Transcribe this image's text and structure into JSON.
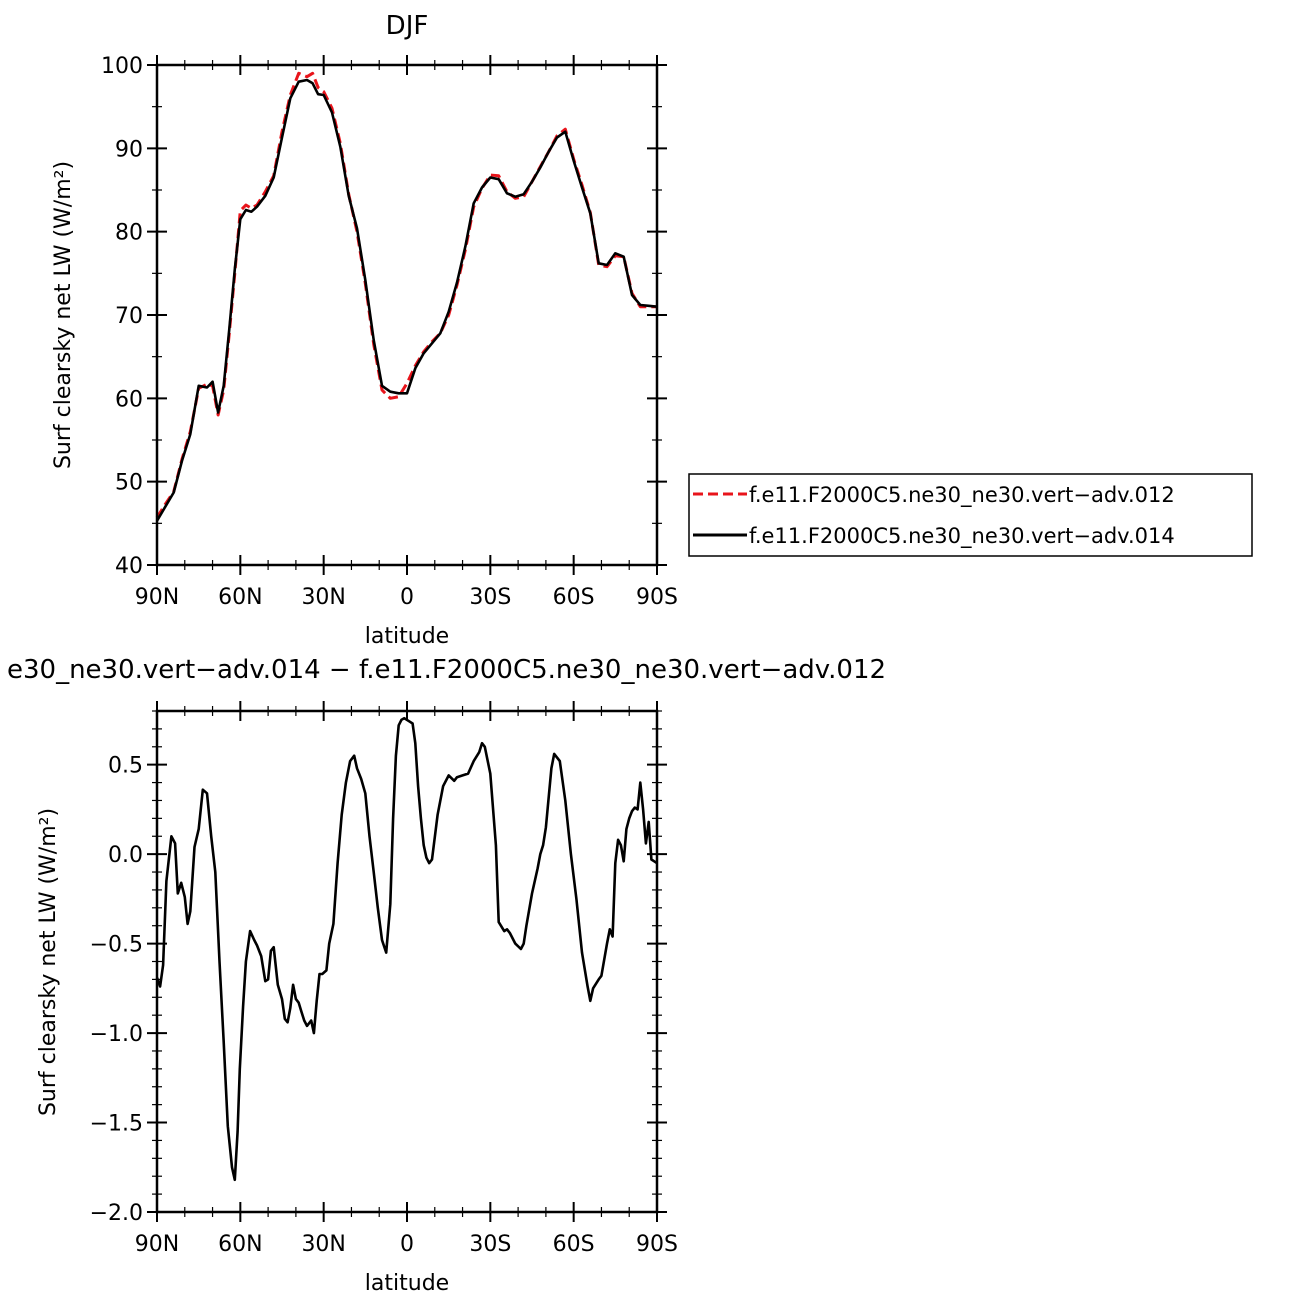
{
  "chart_data": [
    {
      "type": "line",
      "title": "DJF",
      "xlabel": "latitude",
      "ylabel": "Surf clearsky net LW (W/m²)",
      "xlim": [
        90,
        -90
      ],
      "ylim": [
        40,
        100
      ],
      "xticks": [
        {
          "value": 90,
          "label": "90N"
        },
        {
          "value": 60,
          "label": "60N"
        },
        {
          "value": 30,
          "label": "30N"
        },
        {
          "value": 0,
          "label": "0"
        },
        {
          "value": -30,
          "label": "30S"
        },
        {
          "value": -60,
          "label": "60S"
        },
        {
          "value": -90,
          "label": "90S"
        }
      ],
      "yticks": [
        {
          "value": 40,
          "label": "40"
        },
        {
          "value": 50,
          "label": "50"
        },
        {
          "value": 60,
          "label": "60"
        },
        {
          "value": 70,
          "label": "70"
        },
        {
          "value": 80,
          "label": "80"
        },
        {
          "value": 90,
          "label": "90"
        },
        {
          "value": 100,
          "label": "100"
        }
      ],
      "legend": {
        "placement": "right"
      },
      "series": [
        {
          "name": "f.e11.F2000C5.ne30_ne30.vert−adv.012",
          "color": "#e8141b",
          "dash": "dashed",
          "x": [
            90,
            87,
            84,
            81,
            78,
            75,
            72,
            70,
            68,
            66,
            64,
            62,
            60,
            58,
            56,
            54,
            51,
            48,
            45,
            42,
            39,
            36,
            34,
            32,
            30,
            27,
            24,
            21,
            18,
            15,
            12,
            9,
            6,
            3,
            0,
            -3,
            -6,
            -9,
            -12,
            -15,
            -18,
            -21,
            -24,
            -27,
            -30,
            -33,
            -36,
            -39,
            -42,
            -45,
            -48,
            -51,
            -54,
            -57,
            -60,
            -63,
            -66,
            -69,
            -72,
            -75,
            -78,
            -81,
            -84,
            -87,
            -90
          ],
          "values": [
            45.7,
            47.3,
            48.8,
            52.7,
            56.0,
            61.2,
            61.7,
            61.5,
            58.0,
            61.0,
            67.7,
            75.0,
            82.5,
            83.2,
            82.8,
            83.2,
            84.8,
            86.7,
            92.0,
            96.4,
            99.0,
            98.6,
            99.0,
            97.3,
            96.8,
            94.8,
            90.6,
            84.5,
            80.0,
            73.8,
            66.5,
            61.0,
            60.0,
            60.2,
            61.8,
            63.9,
            65.6,
            66.8,
            67.8,
            70.0,
            73.6,
            77.8,
            83.0,
            85.2,
            86.8,
            86.7,
            84.8,
            84.0,
            84.2,
            86.0,
            87.8,
            89.6,
            91.5,
            92.3,
            88.7,
            85.6,
            82.3,
            76.0,
            75.8,
            77.1,
            77.0,
            72.6,
            71.0,
            71.0,
            71.0
          ]
        },
        {
          "name": "f.e11.F2000C5.ne30_ne30.vert−adv.014",
          "color": "#000000",
          "dash": "solid",
          "x": [
            90,
            87,
            84,
            81,
            78,
            75,
            72,
            70,
            68,
            66,
            64,
            62,
            60,
            58,
            56,
            54,
            51,
            48,
            45,
            42,
            39,
            36,
            34,
            32,
            30,
            27,
            24,
            21,
            18,
            15,
            12,
            9,
            6,
            3,
            0,
            -3,
            -6,
            -9,
            -12,
            -15,
            -18,
            -21,
            -24,
            -27,
            -30,
            -33,
            -36,
            -39,
            -42,
            -45,
            -48,
            -51,
            -54,
            -57,
            -60,
            -63,
            -66,
            -69,
            -72,
            -75,
            -78,
            -81,
            -84,
            -87,
            -90
          ],
          "values": [
            45.3,
            47.0,
            48.7,
            52.5,
            55.7,
            61.5,
            61.3,
            62.0,
            58.3,
            61.5,
            68.2,
            75.5,
            81.5,
            82.6,
            82.4,
            83.0,
            84.3,
            86.5,
            91.3,
            96.0,
            98.0,
            98.2,
            97.8,
            96.5,
            96.4,
            94.3,
            90.2,
            84.3,
            80.4,
            74.2,
            67.0,
            61.5,
            60.8,
            60.6,
            60.6,
            63.6,
            65.4,
            66.6,
            67.8,
            70.4,
            73.9,
            78.2,
            83.4,
            85.3,
            86.5,
            86.3,
            84.6,
            84.2,
            84.5,
            86.0,
            87.7,
            89.6,
            91.3,
            92.0,
            88.5,
            85.3,
            82.2,
            76.2,
            76.0,
            77.4,
            77.0,
            72.4,
            71.2,
            71.1,
            71.0
          ]
        }
      ]
    },
    {
      "type": "line",
      "title": "e30_ne30.vert−adv.014 − f.e11.F2000C5.ne30_ne30.vert−adv.012",
      "xlabel": "latitude",
      "ylabel": "Surf clearsky net LW (W/m²)",
      "xlim": [
        90,
        -90
      ],
      "ylim": [
        -2.0,
        0.8
      ],
      "xticks": [
        {
          "value": 90,
          "label": "90N"
        },
        {
          "value": 60,
          "label": "60N"
        },
        {
          "value": 30,
          "label": "30N"
        },
        {
          "value": 0,
          "label": "0"
        },
        {
          "value": -30,
          "label": "30S"
        },
        {
          "value": -60,
          "label": "60S"
        },
        {
          "value": -90,
          "label": "90S"
        }
      ],
      "yticks": [
        {
          "value": -2.0,
          "label": "−2.0"
        },
        {
          "value": -1.5,
          "label": "−1.5"
        },
        {
          "value": -1.0,
          "label": "−1.0"
        },
        {
          "value": -0.5,
          "label": "−0.5"
        },
        {
          "value": 0.0,
          "label": "0.0"
        },
        {
          "value": 0.5,
          "label": "0.5"
        }
      ],
      "series": [
        {
          "color": "#000000",
          "dash": "solid",
          "x": [
            90,
            88.9,
            87.8,
            86.6,
            84.8,
            83.5,
            82.5,
            81.3,
            80,
            79,
            78,
            76.5,
            75,
            73.5,
            72,
            70.5,
            69,
            67.5,
            66,
            64.5,
            63,
            62,
            61,
            60.2,
            59,
            58,
            56.5,
            55,
            54,
            52.5,
            51,
            50,
            49,
            48,
            46.5,
            45,
            44,
            43,
            42,
            41,
            40,
            39,
            38,
            37,
            36,
            34.5,
            33.5,
            32.5,
            31.5,
            30.5,
            29,
            28,
            26.5,
            25,
            23.5,
            22,
            20.5,
            19,
            18,
            16.5,
            15,
            13.5,
            12,
            10.5,
            9,
            7.5,
            6,
            5,
            4,
            3,
            2,
            1,
            -1,
            -2,
            -3,
            -4,
            -5,
            -6,
            -7,
            -8,
            -9,
            -11,
            -13,
            -15,
            -17,
            -18,
            -20,
            -22,
            -24,
            -26,
            -27,
            -28,
            -30,
            -32,
            -33,
            -35,
            -36,
            -37,
            -39,
            -41,
            -42,
            -43,
            -45,
            -47,
            -48,
            -49,
            -50,
            -52,
            -53,
            -55,
            -57,
            -59,
            -61,
            -63,
            -65,
            -66,
            -67,
            -69,
            -70,
            -72,
            -73,
            -74,
            -75,
            -76,
            -77,
            -78,
            -79,
            -80,
            -81,
            -82,
            -83,
            -84,
            -85,
            -86,
            -87,
            -88,
            -89,
            -90
          ],
          "values": [
            -0.69,
            -0.74,
            -0.62,
            -0.15,
            0.1,
            0.06,
            -0.22,
            -0.16,
            -0.24,
            -0.39,
            -0.32,
            0.04,
            0.14,
            0.36,
            0.34,
            0.1,
            -0.1,
            -0.6,
            -1.05,
            -1.52,
            -1.75,
            -1.82,
            -1.55,
            -1.2,
            -0.85,
            -0.6,
            -0.43,
            -0.48,
            -0.51,
            -0.57,
            -0.71,
            -0.7,
            -0.54,
            -0.52,
            -0.73,
            -0.81,
            -0.92,
            -0.94,
            -0.86,
            -0.73,
            -0.81,
            -0.83,
            -0.88,
            -0.93,
            -0.96,
            -0.93,
            -1.0,
            -0.82,
            -0.67,
            -0.67,
            -0.65,
            -0.5,
            -0.39,
            -0.05,
            0.22,
            0.4,
            0.52,
            0.55,
            0.48,
            0.42,
            0.34,
            0.1,
            -0.1,
            -0.3,
            -0.48,
            -0.55,
            -0.28,
            0.2,
            0.55,
            0.72,
            0.75,
            0.76,
            0.74,
            0.73,
            0.62,
            0.38,
            0.2,
            0.05,
            -0.02,
            -0.05,
            -0.03,
            0.22,
            0.38,
            0.44,
            0.41,
            0.43,
            0.44,
            0.45,
            0.52,
            0.57,
            0.62,
            0.6,
            0.45,
            0.05,
            -0.38,
            -0.43,
            -0.42,
            -0.44,
            -0.5,
            -0.53,
            -0.5,
            -0.4,
            -0.22,
            -0.08,
            0.0,
            0.05,
            0.15,
            0.48,
            0.56,
            0.52,
            0.3,
            0.0,
            -0.25,
            -0.55,
            -0.74,
            -0.82,
            -0.75,
            -0.7,
            -0.68,
            -0.5,
            -0.42,
            -0.46,
            -0.05,
            0.08,
            0.05,
            -0.04,
            0.14,
            0.2,
            0.24,
            0.26,
            0.25,
            0.4,
            0.25,
            0.06,
            0.18,
            -0.03,
            -0.04,
            -0.05
          ]
        }
      ]
    }
  ]
}
